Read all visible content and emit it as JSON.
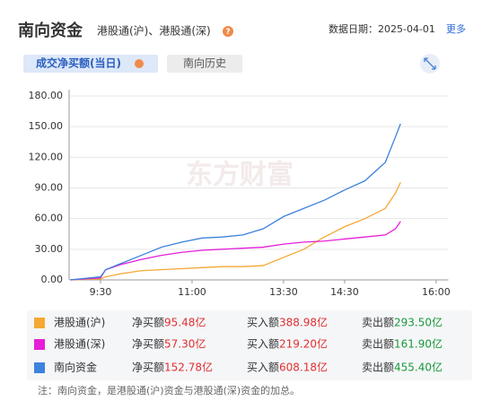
{
  "header": {
    "title": "南向资金",
    "subtitle": "港股通(沪)、港股通(深)",
    "date": "数据日期：2025-04-01",
    "more": "更多"
  },
  "tabs": [
    "成交净买额(当日)",
    "南向历史"
  ],
  "watermark": "东方财富",
  "chart_data": {
    "type": "line",
    "x": [
      0,
      30,
      35,
      50,
      70,
      90,
      110,
      130,
      150,
      170,
      190,
      210,
      230,
      250,
      270,
      290,
      310,
      320,
      325
    ],
    "xlim": [
      0,
      372
    ],
    "xticks": [
      {
        "value": 30,
        "label": "9:30"
      },
      {
        "value": 120,
        "label": "11:00"
      },
      {
        "value": 210,
        "label": "13:30"
      },
      {
        "value": 270,
        "label": "14:30"
      },
      {
        "value": 360,
        "label": "16:00"
      }
    ],
    "ylim": [
      0,
      180
    ],
    "yticks": [
      {
        "value": 0,
        "label": "0.00"
      },
      {
        "value": 30,
        "label": "30.00"
      },
      {
        "value": 60,
        "label": "60.00"
      },
      {
        "value": 90,
        "label": "90.00"
      },
      {
        "value": 120,
        "label": "120.00"
      },
      {
        "value": 150,
        "label": "150.00"
      },
      {
        "value": 180,
        "label": "180.00"
      }
    ],
    "grid": true,
    "series": [
      {
        "name": "港股通(沪)",
        "color": "#f5a833",
        "values": [
          0,
          1,
          3,
          6,
          9,
          10,
          11,
          12,
          13,
          13,
          14,
          22,
          30,
          42,
          52,
          60,
          70,
          85,
          95.48
        ]
      },
      {
        "name": "港股通(深)",
        "color": "#e61ed8",
        "values": [
          0,
          2,
          10,
          15,
          20,
          24,
          27,
          29,
          30,
          31,
          32,
          35,
          37,
          38,
          40,
          42,
          44,
          50,
          57.3
        ]
      },
      {
        "name": "南向资金",
        "color": "#3d82dc",
        "values": [
          0,
          3,
          10,
          16,
          24,
          32,
          37,
          41,
          42,
          44,
          50,
          62,
          70,
          78,
          88,
          97,
          115,
          140,
          152.78
        ]
      }
    ]
  },
  "legend_table": {
    "labels": [
      "净买额",
      "买入额",
      "卖出额"
    ],
    "rows": [
      [
        "95.48亿",
        "388.98亿",
        "293.50亿"
      ],
      [
        "57.30亿",
        "219.20亿",
        "161.90亿"
      ],
      [
        "152.78亿",
        "608.18亿",
        "455.40亿"
      ]
    ]
  },
  "note": "注：南向资金，是港股通(沪)资金与港股通(深)资金的加总。"
}
